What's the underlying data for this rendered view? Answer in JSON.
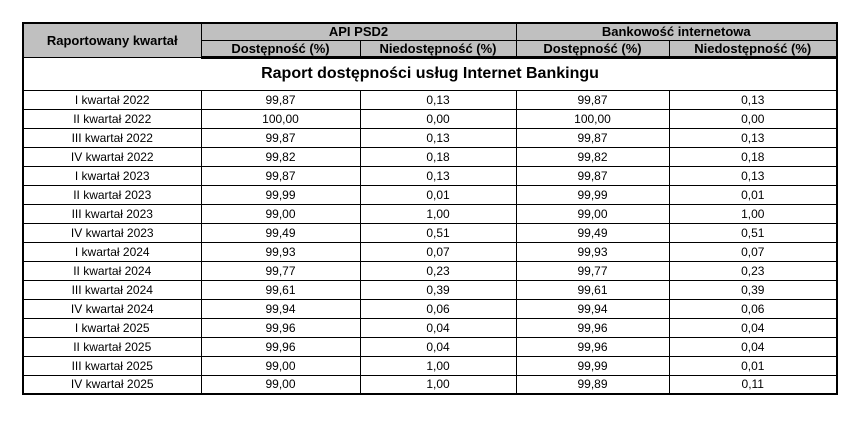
{
  "title": "Raport dostępności usług Internet Bankingu",
  "colors": {
    "header_bg": "#c0c0c0",
    "border": "#000000",
    "page_bg": "#ffffff",
    "text": "#000000"
  },
  "table": {
    "corner_header": "Raportowany kwartał",
    "groups": [
      {
        "label": "API PSD2",
        "columns": [
          "Dostępność (%)",
          "Niedostępność (%)"
        ]
      },
      {
        "label": "Bankowość internetowa",
        "columns": [
          "Dostępność (%)",
          "Niedostępność (%)"
        ]
      }
    ],
    "rows": [
      {
        "quarter": "I kwartał 2022",
        "values": [
          "99,87",
          "0,13",
          "99,87",
          "0,13"
        ]
      },
      {
        "quarter": "II kwartał 2022",
        "values": [
          "100,00",
          "0,00",
          "100,00",
          "0,00"
        ]
      },
      {
        "quarter": "III kwartał 2022",
        "values": [
          "99,87",
          "0,13",
          "99,87",
          "0,13"
        ]
      },
      {
        "quarter": "IV kwartał 2022",
        "values": [
          "99,82",
          "0,18",
          "99,82",
          "0,18"
        ]
      },
      {
        "quarter": "I kwartał 2023",
        "values": [
          "99,87",
          "0,13",
          "99,87",
          "0,13"
        ]
      },
      {
        "quarter": "II kwartał 2023",
        "values": [
          "99,99",
          "0,01",
          "99,99",
          "0,01"
        ]
      },
      {
        "quarter": "III kwartał 2023",
        "values": [
          "99,00",
          "1,00",
          "99,00",
          "1,00"
        ]
      },
      {
        "quarter": "IV kwartał 2023",
        "values": [
          "99,49",
          "0,51",
          "99,49",
          "0,51"
        ]
      },
      {
        "quarter": "I kwartał 2024",
        "values": [
          "99,93",
          "0,07",
          "99,93",
          "0,07"
        ]
      },
      {
        "quarter": "II kwartał 2024",
        "values": [
          "99,77",
          "0,23",
          "99,77",
          "0,23"
        ]
      },
      {
        "quarter": "III kwartał 2024",
        "values": [
          "99,61",
          "0,39",
          "99,61",
          "0,39"
        ]
      },
      {
        "quarter": "IV kwartał 2024",
        "values": [
          "99,94",
          "0,06",
          "99,94",
          "0,06"
        ]
      },
      {
        "quarter": "I kwartał 2025",
        "values": [
          "99,96",
          "0,04",
          "99,96",
          "0,04"
        ]
      },
      {
        "quarter": "II kwartał 2025",
        "values": [
          "99,96",
          "0,04",
          "99,96",
          "0,04"
        ]
      },
      {
        "quarter": "III kwartał 2025",
        "values": [
          "99,00",
          "1,00",
          "99,99",
          "0,01"
        ]
      },
      {
        "quarter": "IV kwartał 2025",
        "values": [
          "99,00",
          "1,00",
          "99,89",
          "0,11"
        ]
      }
    ]
  }
}
